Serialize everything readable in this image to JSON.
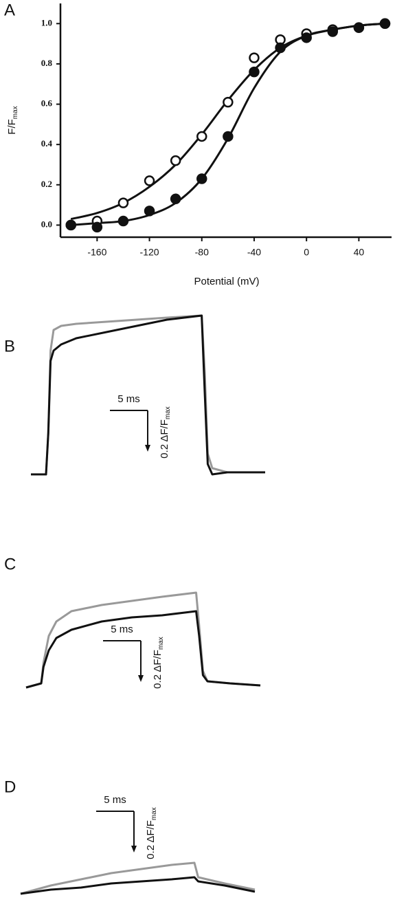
{
  "chart_data": [
    {
      "type": "scatter",
      "panel": "A",
      "ylabel": "F/F",
      "ylabel_sub": "max",
      "xlabel": "Potential (mV)",
      "xlim": [
        -188,
        65
      ],
      "ylim": [
        -0.06,
        1.1
      ],
      "xticks": [
        -160,
        -120,
        -80,
        -40,
        0,
        40
      ],
      "yticks": [
        {
          "value": 0,
          "label": "0.0"
        },
        0.2,
        0.4,
        0.6,
        0.8,
        {
          "value": 1,
          "label": "1.0"
        }
      ],
      "x": [
        -180,
        -160,
        -140,
        -120,
        -100,
        -80,
        -60,
        -40,
        -20,
        0,
        20,
        40,
        60
      ],
      "series": [
        {
          "marker": "open",
          "color": "#111111",
          "values": [
            0,
            0.02,
            0.11,
            0.22,
            0.32,
            0.44,
            0.61,
            0.83,
            0.92,
            0.95,
            0.97,
            0.98,
            1.0
          ],
          "fit": [
            0.03,
            0.06,
            0.11,
            0.19,
            0.3,
            0.45,
            0.62,
            0.77,
            0.88,
            0.94,
            0.97,
            0.99,
            1.0
          ]
        },
        {
          "marker": "filled",
          "color": "#111111",
          "values": [
            0,
            -0.01,
            0.02,
            0.07,
            0.13,
            0.23,
            0.44,
            0.76,
            0.88,
            0.93,
            0.96,
            0.98,
            1.0
          ],
          "fit": [
            0.0,
            0.01,
            0.02,
            0.05,
            0.11,
            0.23,
            0.43,
            0.68,
            0.86,
            0.94,
            0.97,
            0.99,
            1.0
          ]
        }
      ]
    },
    {
      "type": "line",
      "panel": "B",
      "scale_bar": {
        "x_size": 5,
        "x_label": "5 ms",
        "y_size": 0.2,
        "y_label": "0.2 ΔF/F",
        "y_label_sub": "max"
      },
      "x": [
        0,
        2,
        2.3,
        2.6,
        3,
        4,
        6,
        10,
        14,
        18,
        22.6,
        23,
        23.4,
        24,
        26,
        31
      ],
      "series": [
        {
          "color": "#999999",
          "values": [
            0,
            0,
            0.2,
            0.6,
            0.7,
            0.72,
            0.73,
            0.74,
            0.75,
            0.76,
            0.77,
            0.5,
            0.1,
            0.03,
            0.01,
            0.01
          ]
        },
        {
          "color": "#111111",
          "values": [
            0,
            0,
            0.2,
            0.55,
            0.6,
            0.63,
            0.66,
            0.69,
            0.72,
            0.75,
            0.77,
            0.4,
            0.05,
            0.0,
            0.01,
            0.01
          ]
        }
      ]
    },
    {
      "type": "line",
      "panel": "C",
      "scale_bar": {
        "x_size": 5,
        "x_label": "5 ms",
        "y_size": 0.2,
        "y_label": "0.2 ΔF/F",
        "y_label_sub": "max"
      },
      "x": [
        0,
        2,
        2.3,
        3,
        4,
        6,
        10,
        14,
        18,
        22.5,
        22.9,
        23.4,
        24,
        27,
        31
      ],
      "series": [
        {
          "color": "#999999",
          "values": [
            0,
            0.02,
            0.12,
            0.25,
            0.32,
            0.37,
            0.4,
            0.42,
            0.44,
            0.46,
            0.3,
            0.08,
            0.03,
            0.02,
            0.01
          ]
        },
        {
          "color": "#111111",
          "values": [
            0,
            0.02,
            0.1,
            0.18,
            0.24,
            0.28,
            0.32,
            0.34,
            0.35,
            0.37,
            0.25,
            0.06,
            0.03,
            0.02,
            0.01
          ]
        }
      ]
    },
    {
      "type": "line",
      "panel": "D",
      "scale_bar": {
        "x_size": 5,
        "x_label": "5 ms",
        "y_size": 0.2,
        "y_label": "0.2 ΔF/F",
        "y_label_sub": "max"
      },
      "x": [
        0,
        4,
        8,
        12,
        16,
        20,
        23,
        23.5,
        27,
        31
      ],
      "series": [
        {
          "color": "#999999",
          "values": [
            0,
            0.04,
            0.07,
            0.1,
            0.12,
            0.14,
            0.15,
            0.08,
            0.05,
            0.02
          ]
        },
        {
          "color": "#111111",
          "values": [
            0,
            0.02,
            0.03,
            0.05,
            0.06,
            0.07,
            0.08,
            0.06,
            0.04,
            0.01
          ]
        }
      ]
    }
  ]
}
